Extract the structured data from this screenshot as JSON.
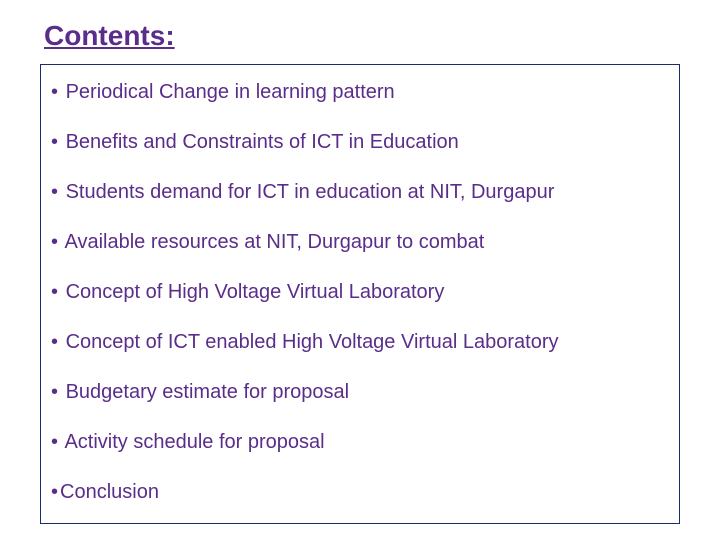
{
  "title": "Contents:",
  "colors": {
    "title_color": "#5a2d8a",
    "border_color": "#1a2b6d",
    "bullet_text_color": "#5a2d8a",
    "background": "#ffffff"
  },
  "typography": {
    "title_fontsize": 28,
    "item_fontsize": 20,
    "font_family": "Arial"
  },
  "items": [
    {
      "bullet": "•",
      "spacing": " ",
      "text": "Periodical Change in learning pattern"
    },
    {
      "bullet": "•",
      "spacing": " ",
      "text": "Benefits and Constraints of ICT in Education"
    },
    {
      "bullet": "•",
      "spacing": " ",
      "text": "Students demand for ICT in education at NIT, Durgapur"
    },
    {
      "bullet": "•",
      "spacing": " ",
      "text": "Available resources at NIT, Durgapur to combat"
    },
    {
      "bullet": "•",
      "spacing": " ",
      "text": "Concept of High Voltage Virtual Laboratory"
    },
    {
      "bullet": "•",
      "spacing": " ",
      "text": "Concept of ICT enabled High Voltage Virtual Laboratory"
    },
    {
      "bullet": "•",
      "spacing": " ",
      "text": "Budgetary estimate for proposal"
    },
    {
      "bullet": "•",
      "spacing": " ",
      "text": "Activity schedule for proposal"
    },
    {
      "bullet": "•",
      "spacing": "",
      "text": "Conclusion"
    }
  ]
}
